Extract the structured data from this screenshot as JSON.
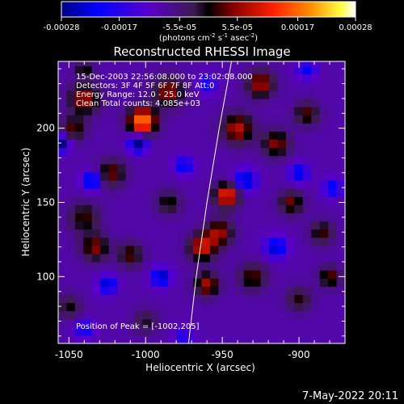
{
  "chart_data": {
    "type": "heatmap",
    "title": "Reconstructed RHESSI Image",
    "xlabel": "Heliocentric X (arcsec)",
    "ylabel": "Heliocentric Y (arcsec)",
    "xlim": [
      -1057,
      -870
    ],
    "ylim": [
      55,
      245
    ],
    "x_ticks": [
      -1050,
      -1000,
      -950,
      -900
    ],
    "y_ticks": [
      100,
      150,
      200
    ],
    "colorbar": {
      "range": [
        -0.00028,
        0.00028
      ],
      "ticks": [
        "-0.00028",
        "-0.00017",
        "-5.5e-05",
        "5.5e-05",
        "0.00017",
        "0.00028"
      ],
      "unit_label": "(photons cm",
      "unit_sup1": "-2",
      "unit_mid": " s",
      "unit_sup2": "-1",
      "unit_end": " asec",
      "unit_sup3": "-2",
      "unit_close": ")"
    },
    "annotations": [
      "15-Dec-2003 22:56:08.000 to 23:02:08.000",
      "Detectors: 3F 4F 5F 6F 7F 8F Att:0",
      "Energy Range: 12.0 - 25.0 keV",
      "Clean    Total counts: 4.085e+03"
    ],
    "peak_label": "Position of Peak = [-1002,205]",
    "peak": [
      -1002,
      205
    ],
    "limb_curve": [
      [
        -972,
        55
      ],
      [
        -967,
        100
      ],
      [
        -960,
        150
      ],
      [
        -952,
        200
      ],
      [
        -944,
        245
      ]
    ],
    "blobs": [
      {
        "x": -1002,
        "y": 205,
        "r": 9,
        "v": 0.00028
      },
      {
        "x": -1040,
        "y": 220,
        "r": 10,
        "v": 0.00016
      },
      {
        "x": -985,
        "y": 225,
        "r": 10,
        "v": 0.00015
      },
      {
        "x": -1047,
        "y": 200,
        "r": 8,
        "v": 0.00012
      },
      {
        "x": -1022,
        "y": 170,
        "r": 9,
        "v": 0.00013
      },
      {
        "x": -1040,
        "y": 140,
        "r": 10,
        "v": 0.00011
      },
      {
        "x": -1033,
        "y": 120,
        "r": 9,
        "v": 0.00014
      },
      {
        "x": -1010,
        "y": 115,
        "r": 8,
        "v": 0.00012
      },
      {
        "x": -985,
        "y": 150,
        "r": 8,
        "v": 0.0001
      },
      {
        "x": -963,
        "y": 120,
        "r": 9,
        "v": 0.00018
      },
      {
        "x": -960,
        "y": 95,
        "r": 8,
        "v": 0.00016
      },
      {
        "x": -947,
        "y": 155,
        "r": 8,
        "v": 0.00022
      },
      {
        "x": -952,
        "y": 130,
        "r": 9,
        "v": 0.00015
      },
      {
        "x": -940,
        "y": 200,
        "r": 10,
        "v": 0.00017
      },
      {
        "x": -925,
        "y": 230,
        "r": 9,
        "v": 0.00016
      },
      {
        "x": -915,
        "y": 190,
        "r": 9,
        "v": 0.00014
      },
      {
        "x": -905,
        "y": 150,
        "r": 8,
        "v": 0.00013
      },
      {
        "x": -885,
        "y": 130,
        "r": 8,
        "v": 0.00011
      },
      {
        "x": -895,
        "y": 210,
        "r": 8,
        "v": 0.00012
      },
      {
        "x": -930,
        "y": 100,
        "r": 9,
        "v": 0.00012
      },
      {
        "x": -900,
        "y": 85,
        "r": 8,
        "v": 0.0001
      },
      {
        "x": -880,
        "y": 100,
        "r": 7,
        "v": 0.00013
      },
      {
        "x": -1050,
        "y": 80,
        "r": 8,
        "v": 9e-05
      },
      {
        "x": -1000,
        "y": 70,
        "r": 8,
        "v": 8e-05
      },
      {
        "x": -1040,
        "y": 240,
        "r": 6,
        "v": 0.0001
      },
      {
        "x": -1055,
        "y": 190,
        "r": 5,
        "v": -0.00024
      },
      {
        "x": -1035,
        "y": 165,
        "r": 6,
        "v": -0.00018
      },
      {
        "x": -1005,
        "y": 190,
        "r": 6,
        "v": -0.0002
      },
      {
        "x": -1025,
        "y": 95,
        "r": 6,
        "v": -0.00016
      },
      {
        "x": -990,
        "y": 100,
        "r": 6,
        "v": -0.00018
      },
      {
        "x": -975,
        "y": 175,
        "r": 6,
        "v": -0.00014
      },
      {
        "x": -935,
        "y": 165,
        "r": 7,
        "v": -0.00017
      },
      {
        "x": -900,
        "y": 170,
        "r": 6,
        "v": -0.00015
      },
      {
        "x": -878,
        "y": 160,
        "r": 6,
        "v": -0.00014
      },
      {
        "x": -915,
        "y": 120,
        "r": 7,
        "v": -0.00016
      },
      {
        "x": -895,
        "y": 240,
        "r": 6,
        "v": -0.00013
      },
      {
        "x": -960,
        "y": 230,
        "r": 6,
        "v": -0.00012
      },
      {
        "x": -1040,
        "y": 65,
        "r": 6,
        "v": -0.00012
      },
      {
        "x": -975,
        "y": 60,
        "r": 6,
        "v": -0.0001
      }
    ]
  },
  "footer_date": "7-May-2022 20:11"
}
